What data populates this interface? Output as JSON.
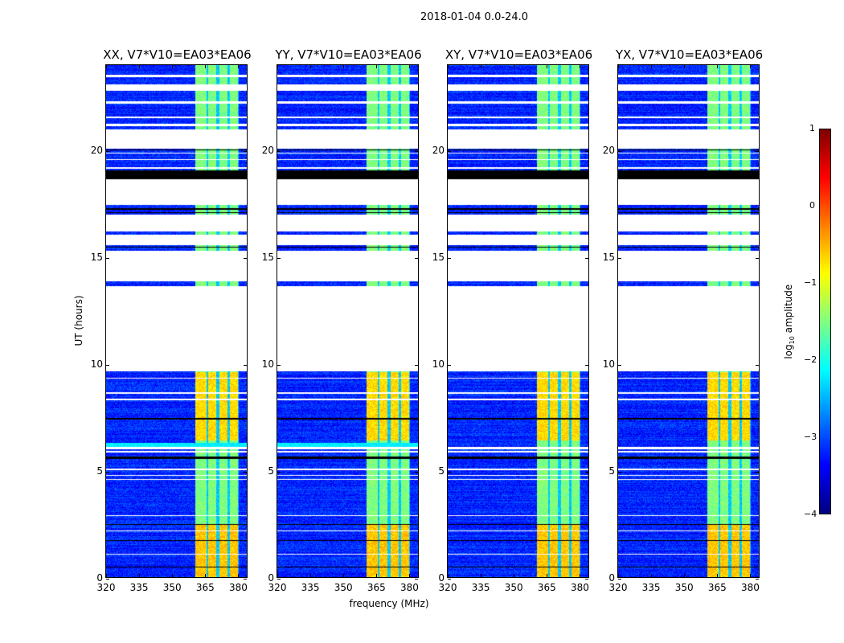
{
  "chart_data": {
    "type": "heatmap",
    "title": "2018-01-04 0.0-24.0",
    "xlabel": "frequency (MHz)",
    "ylabel": "UT (hours)",
    "xlim": [
      320,
      384.6
    ],
    "ylim": [
      0,
      24
    ],
    "xticks": [
      "320",
      "335",
      "350",
      "365",
      "380"
    ],
    "yticks": [
      "0",
      "5",
      "10",
      "15",
      "20"
    ],
    "colormap": "jet",
    "colorbar": {
      "label_prefix": "log",
      "label_sub": "10",
      "label_suffix": " amplitude",
      "range": [
        -4,
        1
      ],
      "ticks": [
        "1",
        "0",
        "−1",
        "−2",
        "−3",
        "−4"
      ]
    },
    "panels": [
      {
        "title": "XX, V7*V10=EA03*EA06",
        "cyan_band": [
          6.1,
          6.3
        ]
      },
      {
        "title": "YY, V7*V10=EA03*EA06",
        "cyan_band": [
          6.1,
          6.3
        ]
      },
      {
        "title": "XY, V7*V10=EA03*EA06",
        "cyan_band": null
      },
      {
        "title": "YX, V7*V10=EA03*EA06",
        "cyan_band": null
      }
    ],
    "background_level": -3.2,
    "rfi_bands_mhz": [
      [
        361,
        366
      ],
      [
        367,
        370.7
      ],
      [
        372,
        375.8
      ],
      [
        377,
        380.6
      ]
    ],
    "rfi_levels": [
      {
        "range": [
          0,
          2.5
        ],
        "level": -0.6
      },
      {
        "range": [
          6.4,
          9.6
        ],
        "level": -0.7
      },
      {
        "range": [
          0,
          24
        ],
        "level": -1.5
      }
    ],
    "flagged_hours": [
      [
        23.45,
        23.55
      ],
      [
        22.8,
        23.1
      ],
      [
        22.2,
        22.3
      ],
      [
        21.5,
        21.6
      ],
      [
        21.15,
        21.25
      ],
      [
        20.1,
        21.0
      ],
      [
        19.85,
        19.9
      ],
      [
        19.55,
        19.6
      ],
      [
        19.15,
        19.2
      ],
      [
        17.45,
        18.65
      ],
      [
        16.2,
        17.0
      ],
      [
        15.55,
        16.05
      ],
      [
        13.85,
        15.3
      ],
      [
        9.65,
        13.65
      ],
      [
        9.3,
        9.35
      ],
      [
        8.6,
        8.65
      ],
      [
        8.3,
        8.35
      ],
      [
        6.0,
        6.1
      ],
      [
        5.85,
        5.9
      ],
      [
        5.0,
        5.1
      ],
      [
        4.75,
        4.8
      ],
      [
        4.55,
        4.6
      ],
      [
        2.85,
        2.9
      ],
      [
        2.15,
        2.2
      ],
      [
        1.05,
        1.1
      ]
    ],
    "zero_hours": [
      [
        18.65,
        19.05
      ],
      [
        17.2,
        17.3
      ],
      [
        17.05,
        17.1
      ],
      [
        15.45,
        15.5
      ],
      [
        7.4,
        7.45
      ],
      [
        5.55,
        5.65
      ],
      [
        2.45,
        2.5
      ],
      [
        1.7,
        1.75
      ],
      [
        0.45,
        0.5
      ],
      [
        20.0,
        20.03
      ]
    ]
  }
}
